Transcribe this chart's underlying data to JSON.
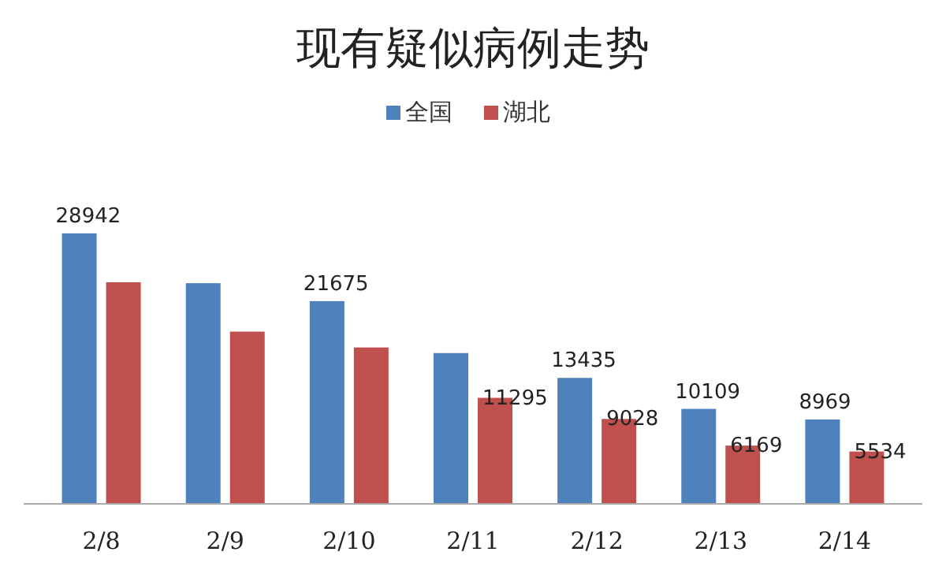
{
  "chart_data": {
    "type": "bar",
    "title": "现有疑似病例走势",
    "categories": [
      "2/8",
      "2/9",
      "2/10",
      "2/11",
      "2/12",
      "2/13",
      "2/14"
    ],
    "series": [
      {
        "name": "全国",
        "color": "#4f81bd",
        "values": [
          28942,
          23600,
          21675,
          16100,
          13435,
          10109,
          8969
        ],
        "value_labels": [
          "28942",
          null,
          "21675",
          null,
          "13435",
          "10109",
          "8969"
        ]
      },
      {
        "name": "湖北",
        "color": "#c0504d",
        "values": [
          23700,
          18400,
          16700,
          11295,
          9028,
          6169,
          5534
        ],
        "value_labels": [
          null,
          null,
          null,
          "11295",
          "9028",
          "6169",
          "5534"
        ]
      }
    ],
    "legend": "top"
  }
}
